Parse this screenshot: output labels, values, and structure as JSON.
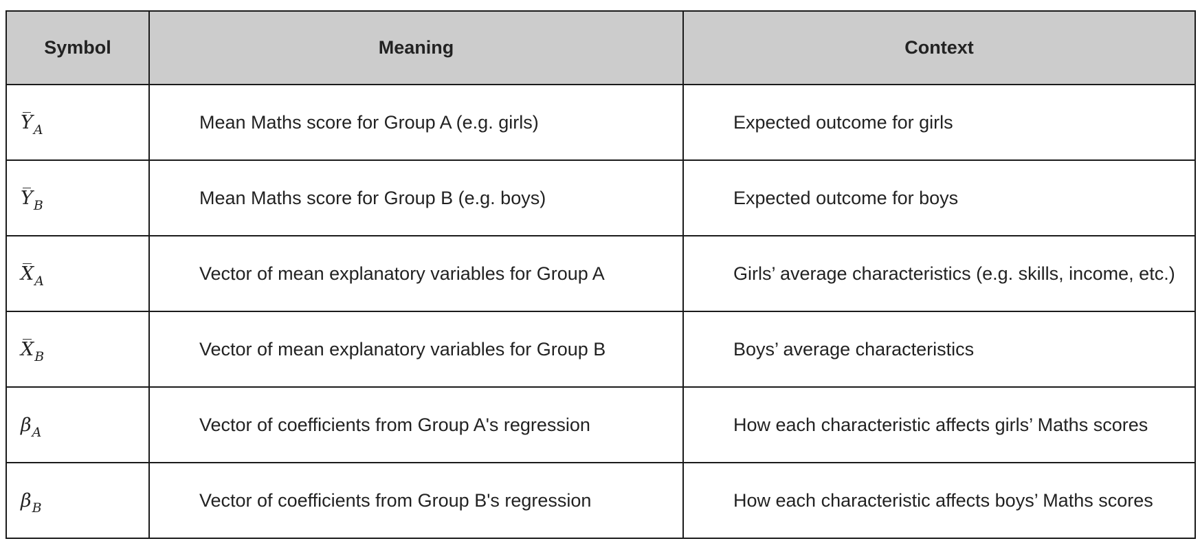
{
  "table": {
    "headers": {
      "symbol": "Symbol",
      "meaning": "Meaning",
      "context": "Context"
    },
    "rows": [
      {
        "symbol_base": "Y",
        "symbol_sub": "A",
        "meaning": "Mean Maths score for Group A (e.g. girls)",
        "context": "Expected outcome for girls"
      },
      {
        "symbol_base": "Y",
        "symbol_sub": "B",
        "meaning": "Mean Maths score for Group B (e.g. boys)",
        "context": "Expected outcome for boys"
      },
      {
        "symbol_base": "X",
        "symbol_sub": "A",
        "meaning": "Vector of mean explanatory variables for Group A",
        "context": "Girls’ average characteristics (e.g. skills, income, etc.)"
      },
      {
        "symbol_base": "X",
        "symbol_sub": "B",
        "meaning": "Vector of mean explanatory variables for Group B",
        "context": "Boys’ average characteristics"
      },
      {
        "symbol_base": "β",
        "symbol_sub": "A",
        "meaning": "Vector of coefficients from Group A's regression",
        "context": "How each characteristic affects girls’ Maths scores"
      },
      {
        "symbol_base": "β",
        "symbol_sub": "B",
        "meaning": "Vector of coefficients from Group B's regression",
        "context": "How each characteristic affects boys’ Maths scores"
      }
    ]
  }
}
